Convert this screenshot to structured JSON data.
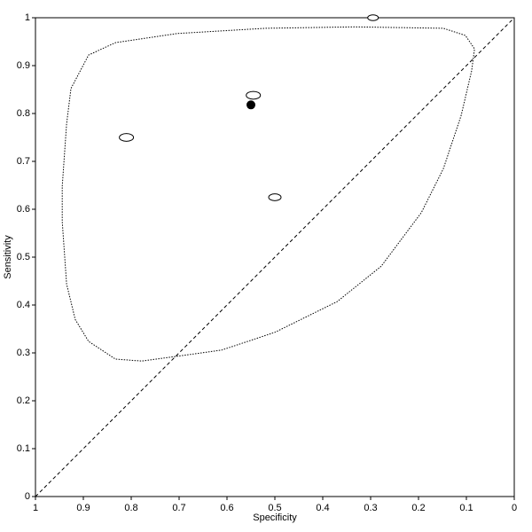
{
  "chart_data": {
    "type": "scatter",
    "x_label": "Specificity",
    "y_label": "Sensitivity",
    "xlim": [
      1,
      0
    ],
    "ylim": [
      0,
      1
    ],
    "xticks": [
      1,
      0.9,
      0.8,
      0.7,
      0.6,
      0.5,
      0.4,
      0.3,
      0.2,
      0.1,
      0
    ],
    "yticks": [
      0,
      0.1,
      0.2,
      0.3,
      0.4,
      0.5,
      0.6,
      0.7,
      0.8,
      0.9,
      1
    ],
    "studies": {
      "x": [
        0.295,
        0.545,
        0.81,
        0.5
      ],
      "y": [
        1.0,
        0.838,
        0.75,
        0.625
      ],
      "sizes": [
        6,
        8,
        8,
        7
      ]
    },
    "summary": {
      "x": 0.55,
      "y": 0.818
    },
    "region": {
      "x": [
        0.944,
        0.935,
        0.926,
        0.889,
        0.833,
        0.704,
        0.519,
        0.333,
        0.148,
        0.102,
        0.083,
        0.089,
        0.111,
        0.148,
        0.194,
        0.278,
        0.37,
        0.5,
        0.611,
        0.704,
        0.778,
        0.833,
        0.889,
        0.917,
        0.935,
        0.944
      ],
      "y": [
        0.648,
        0.778,
        0.852,
        0.922,
        0.948,
        0.967,
        0.978,
        0.981,
        0.978,
        0.963,
        0.935,
        0.889,
        0.796,
        0.685,
        0.593,
        0.481,
        0.407,
        0.343,
        0.306,
        0.293,
        0.283,
        0.287,
        0.324,
        0.37,
        0.444,
        0.574
      ]
    }
  }
}
